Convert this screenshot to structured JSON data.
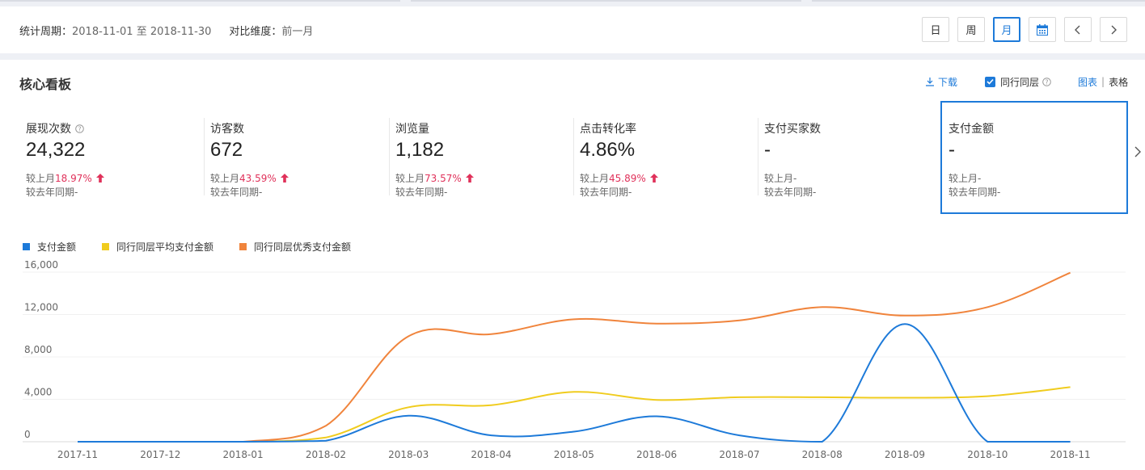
{
  "period": {
    "label": "统计周期：",
    "range": "2018-11-01 至 2018-11-30",
    "compare_label": "对比维度：",
    "compare_value": "前一月"
  },
  "period_buttons": {
    "day": "日",
    "week": "周",
    "month": "月",
    "active": "month"
  },
  "dashboard": {
    "title": "核心看板",
    "download_label": "下载",
    "peer_label": "同行同层",
    "peer_checked": true,
    "view_chart": "图表",
    "view_table": "表格",
    "view_active": "chart"
  },
  "metrics": [
    {
      "name": "展现次数",
      "value": "24,322",
      "mom_label": "较上月",
      "mom_value": "18.97%",
      "mom_trend": "up",
      "yoy_label": "较去年同期",
      "yoy_value": "-",
      "has_help": true
    },
    {
      "name": "访客数",
      "value": "672",
      "mom_label": "较上月",
      "mom_value": "43.59%",
      "mom_trend": "up",
      "yoy_label": "较去年同期",
      "yoy_value": "-"
    },
    {
      "name": "浏览量",
      "value": "1,182",
      "mom_label": "较上月",
      "mom_value": "73.57%",
      "mom_trend": "up",
      "yoy_label": "较去年同期",
      "yoy_value": "-"
    },
    {
      "name": "点击转化率",
      "value": "4.86%",
      "mom_label": "较上月",
      "mom_value": "45.89%",
      "mom_trend": "up",
      "yoy_label": "较去年同期",
      "yoy_value": "-"
    },
    {
      "name": "支付买家数",
      "value": "-",
      "mom_label": "较上月",
      "mom_value": "-",
      "mom_trend": "none",
      "yoy_label": "较去年同期",
      "yoy_value": "-"
    },
    {
      "name": "支付金额",
      "value": "-",
      "mom_label": "较上月",
      "mom_value": "-",
      "mom_trend": "none",
      "yoy_label": "较去年同期",
      "yoy_value": "-",
      "selected": true
    }
  ],
  "colors": {
    "accent": "#1d7ad9",
    "up": "#e0315a",
    "series1": "#1d7ad9",
    "series2": "#f0cc1e",
    "series3": "#f0843c"
  },
  "icons": {
    "calendar": "calendar-icon",
    "prev": "chevron-left-icon",
    "next": "chevron-right-icon",
    "download": "download-icon",
    "help": "help-circle-icon",
    "up": "arrow-up-icon"
  },
  "chart_data": {
    "type": "line",
    "categories": [
      "2017-11",
      "2017-12",
      "2018-01",
      "2018-02",
      "2018-03",
      "2018-04",
      "2018-05",
      "2018-06",
      "2018-07",
      "2018-08",
      "2018-09",
      "2018-10",
      "2018-11"
    ],
    "y_ticks": [
      0,
      4000,
      8000,
      12000,
      16000
    ],
    "y_tick_labels": [
      "0",
      "4,000",
      "8,000",
      "12,000",
      "16,000"
    ],
    "ylim": [
      0,
      16000
    ],
    "grid": true,
    "legend_position": "top-left",
    "series": [
      {
        "name": "支付金额",
        "color": "#1d7ad9",
        "values": [
          0,
          0,
          0,
          100,
          2450,
          600,
          950,
          2400,
          600,
          0,
          11100,
          0,
          0
        ]
      },
      {
        "name": "同行同层平均支付金额",
        "color": "#f0cc1e",
        "values": [
          0,
          0,
          0,
          400,
          3250,
          3450,
          4700,
          3950,
          4200,
          4200,
          4150,
          4300,
          5150
        ]
      },
      {
        "name": "同行同层优秀支付金额",
        "color": "#f0843c",
        "values": [
          0,
          0,
          0,
          1500,
          9950,
          10150,
          11550,
          11150,
          11450,
          12700,
          11900,
          12700,
          15950
        ]
      }
    ]
  }
}
